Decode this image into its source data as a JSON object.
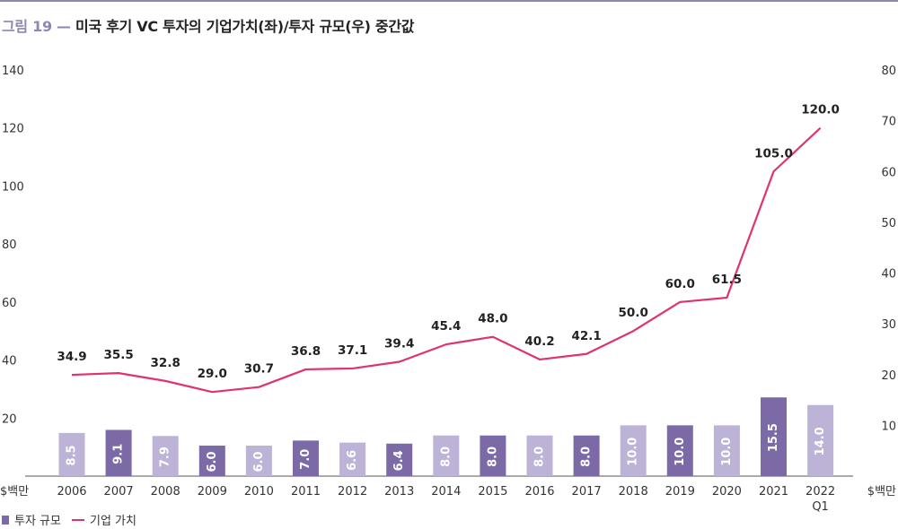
{
  "header": {
    "figure_no": "그림 19 —",
    "title": "미국 후기 VC 투자의 기업가치(좌)/투자 규모(우) 중간값"
  },
  "chart_data": {
    "type": "bar+line",
    "categories": [
      "2006",
      "2007",
      "2008",
      "2009",
      "2010",
      "2011",
      "2012",
      "2013",
      "2014",
      "2015",
      "2016",
      "2017",
      "2018",
      "2019",
      "2020",
      "2021",
      "2022 Q1"
    ],
    "left_axis": {
      "unit": "$백만",
      "ticks": [
        20,
        40,
        60,
        80,
        100,
        120,
        140
      ],
      "range": [
        0,
        140
      ]
    },
    "right_axis": {
      "unit": "$백만",
      "ticks": [
        10,
        20,
        30,
        40,
        50,
        60,
        70,
        80
      ],
      "range": [
        0,
        80
      ]
    },
    "series": [
      {
        "name": "투자 규모",
        "kind": "bar",
        "axis": "right",
        "values": [
          8.5,
          9.1,
          7.9,
          6.0,
          6.0,
          7.0,
          6.6,
          6.4,
          8.0,
          8.0,
          8.0,
          8.0,
          10.0,
          10.0,
          10.0,
          15.5,
          14.0
        ],
        "labels": [
          "8.5",
          "9.1",
          "7.9",
          "6.0",
          "6.0",
          "7.0",
          "6.6",
          "6.4",
          "8.0",
          "8.0",
          "8.0",
          "8.0",
          "10.0",
          "10.0",
          "10.0",
          "15.5",
          "14.0"
        ],
        "shade": [
          "light",
          "dark",
          "light",
          "dark",
          "light",
          "dark",
          "light",
          "dark",
          "light",
          "dark",
          "light",
          "dark",
          "light",
          "dark",
          "light",
          "dark",
          "light"
        ]
      },
      {
        "name": "기업 가치",
        "kind": "line",
        "axis": "left",
        "values": [
          34.9,
          35.5,
          32.8,
          29.0,
          30.7,
          36.8,
          37.1,
          39.4,
          45.4,
          48.0,
          40.2,
          42.1,
          50.0,
          60.0,
          61.5,
          105.0,
          120.0
        ],
        "labels": [
          "34.9",
          "35.5",
          "32.8",
          "29.0",
          "30.7",
          "36.8",
          "37.1",
          "39.4",
          "45.4",
          "48.0",
          "40.2",
          "42.1",
          "50.0",
          "60.0",
          "61.5",
          "105.0",
          "120.0"
        ]
      }
    ],
    "colors": {
      "bar_dark": "#7b6aa6",
      "bar_light": "#bcb3d6",
      "line": "#e0336b",
      "axis": "#555555"
    },
    "grid": false,
    "legend_position": "bottom-left"
  }
}
